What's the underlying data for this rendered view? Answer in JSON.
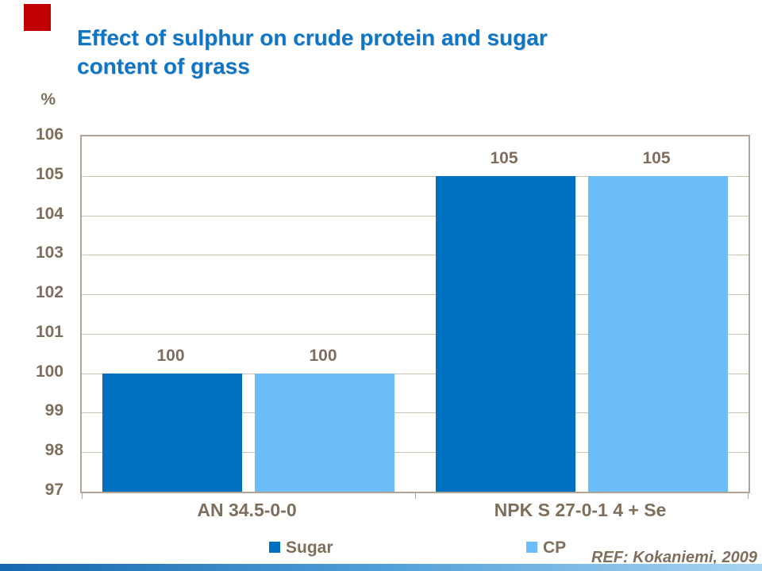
{
  "slide": {
    "title_line1": "Effect of sulphur on crude protein and sugar",
    "title_line2": "content of grass",
    "footer_ref": "REF: Kokaniemi, 2009"
  },
  "colors": {
    "title_blue": "#0e76c4",
    "text_brown": "#7e6f5d",
    "grid_line": "#ccc3b5",
    "frame": "#b1a597",
    "accent_red": "#c00000",
    "footer_gradient_left": "#1468ae",
    "footer_gradient_mid": "#4f9fd9",
    "footer_gradient_right": "#aad5f2",
    "bar_sugar": "#0070c0",
    "bar_cp": "#6bbdf8"
  },
  "chart_data": {
    "type": "bar",
    "title": "Effect of sulphur on crude protein and sugar content of grass",
    "unit_label": "%",
    "categories": [
      "AN 34.5-0-0",
      "NPK S 27-0-1 4 + Se"
    ],
    "series": [
      {
        "name": "Sugar",
        "color": "#0070c0",
        "values": [
          100,
          105
        ]
      },
      {
        "name": "CP",
        "color": "#6bbdf8",
        "values": [
          100,
          105
        ]
      }
    ],
    "data_labels": {
      "Sugar": [
        "100",
        "105"
      ],
      "CP": [
        "100",
        "105"
      ]
    },
    "ylim": [
      97,
      106
    ],
    "yticks": [
      97,
      98,
      99,
      100,
      101,
      102,
      103,
      104,
      105,
      106
    ],
    "grid": true,
    "legend_position": "bottom",
    "annotation": "REF: Kokaniemi, 2009"
  }
}
